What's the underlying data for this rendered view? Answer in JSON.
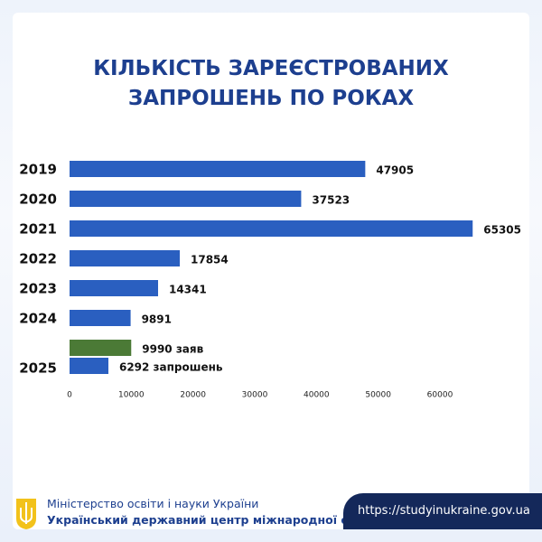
{
  "chart_data": {
    "type": "bar",
    "title": "КІЛЬКІСТЬ ЗАРЕЄСТРОВАНИХ ЗАПРОШЕНЬ ПО РОКАХ",
    "categories": [
      "2019",
      "2020",
      "2021",
      "2022",
      "2023",
      "2024",
      "2025"
    ],
    "series": [
      {
        "color": "#4b7a36",
        "values": [
          null,
          null,
          null,
          null,
          null,
          null,
          9990
        ],
        "value_labels": [
          null,
          null,
          null,
          null,
          null,
          null,
          "9990 заяв"
        ]
      },
      {
        "color": "#2a5fc0",
        "values": [
          47905,
          37523,
          65305,
          17854,
          14341,
          9891,
          6292
        ],
        "value_labels": [
          null,
          null,
          null,
          null,
          null,
          null,
          "6292 запрошень"
        ]
      }
    ],
    "xlim": [
      0,
      66000
    ],
    "xticks": [
      0,
      10000,
      20000,
      30000,
      40000,
      50000,
      60000
    ]
  },
  "footer": {
    "ministry": "Міністерство освіти і науки України",
    "center": "Український державний центр міжнародної освіти",
    "url": "https://studyinukraine.gov.ua"
  }
}
